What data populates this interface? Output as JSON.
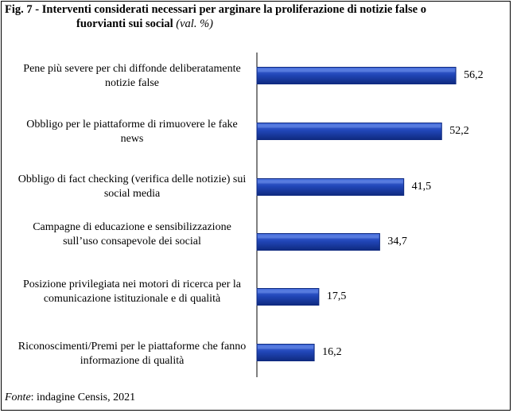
{
  "chart_data": {
    "type": "bar",
    "orientation": "horizontal",
    "title_prefix": "Fig. 7",
    "title": "Interventi considerati necessari per arginare la proliferazione di notizie false o fuorvianti sui social",
    "subtitle": "(val. %)",
    "categories": [
      "Pene più severe per chi diffonde deliberatamente notizie false",
      "Obbligo per le piattaforme di rimuovere le fake news",
      "Obbligo di fact checking (verifica delle notizie) sui social media",
      "Campagne di educazione e sensibilizzazione sull’uso consapevole dei social",
      "Posizione privilegiata nei motori di ricerca per la comunicazione istituzionale e di qualità",
      "Riconoscimenti/Premi per le piattaforme che fanno informazione di qualità"
    ],
    "values": [
      56.2,
      52.2,
      41.5,
      34.7,
      17.5,
      16.2
    ],
    "value_labels": [
      "56,2",
      "52,2",
      "41,5",
      "34,7",
      "17,5",
      "16,2"
    ],
    "xlim": [
      0,
      100
    ],
    "grid": false,
    "bar_color": "#2146b8",
    "bar_dark": "#0f2a80"
  },
  "source": {
    "label": "Fonte",
    "text": ": indagine Censis, 2021"
  }
}
